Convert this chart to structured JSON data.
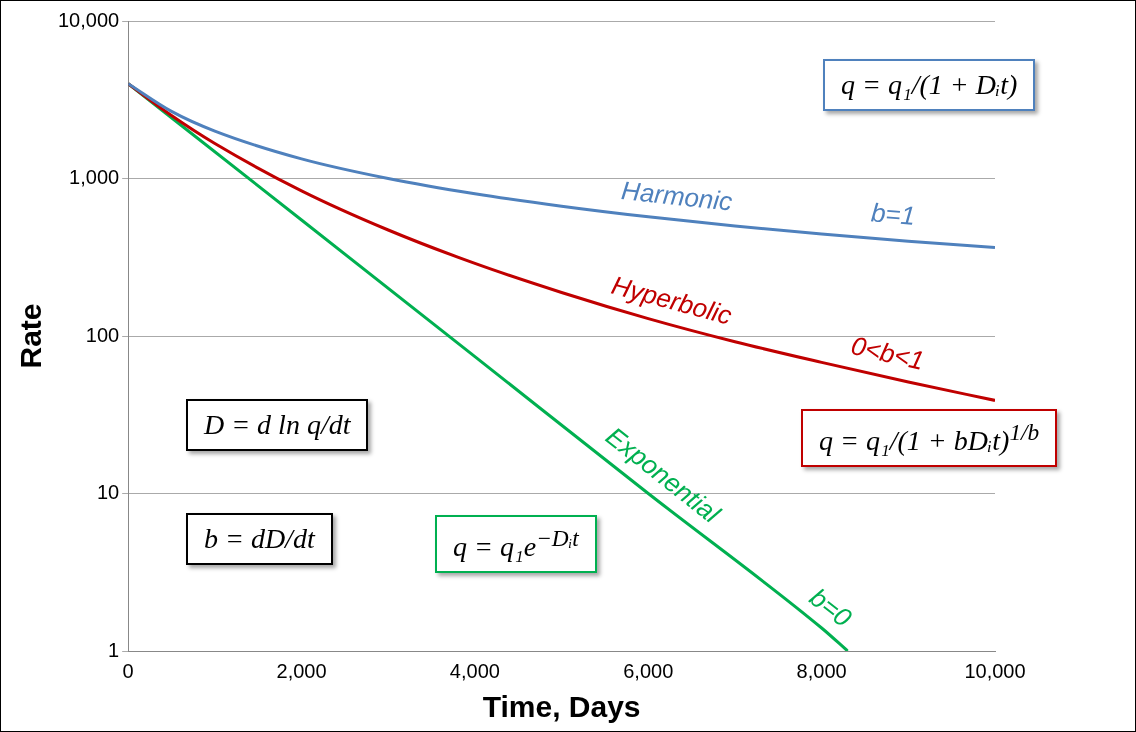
{
  "chart_data": {
    "type": "line",
    "xlabel": "Time, Days",
    "ylabel": "Rate",
    "log": "y",
    "grid": "y",
    "legend": false,
    "marker": "none",
    "line_style": "solid",
    "xlim": [
      0,
      10000
    ],
    "xticks": [
      0,
      {
        "value": 2000,
        "label": "2,000"
      },
      {
        "value": 4000,
        "label": "4,000"
      },
      {
        "value": 6000,
        "label": "6,000"
      },
      {
        "value": 8000,
        "label": "8,000"
      },
      {
        "value": 10000,
        "label": "10,000"
      }
    ],
    "ylim": [
      1,
      10000
    ],
    "yticks": [
      1,
      10,
      100,
      {
        "value": 1000,
        "label": "1,000"
      },
      {
        "value": 10000,
        "label": "10,000"
      }
    ],
    "series": [
      {
        "name": "Harmonic",
        "color": "#4f81bd",
        "x": [
          0,
          500,
          1000,
          2000,
          3000,
          4000,
          5000,
          6000,
          7000,
          8000,
          9000,
          10000
        ],
        "values": [
          4000,
          2667,
          2000,
          1333,
          1000,
          800,
          667,
          571,
          500,
          444,
          400,
          364
        ]
      },
      {
        "name": "Hyperbolic",
        "color": "#c00000",
        "x": [
          0,
          500,
          1000,
          2000,
          3000,
          4000,
          5000,
          6000,
          7000,
          8000,
          9000,
          10000
        ],
        "values": [
          4000,
          2511,
          1668,
          835,
          471,
          289,
          189,
          129,
          92,
          68,
          51,
          39
        ]
      },
      {
        "name": "Exponential",
        "color": "#00b050",
        "x": [
          0,
          2000,
          4000,
          6000,
          8000,
          8300
        ],
        "values": [
          4000,
          545,
          74,
          10,
          1.4,
          1
        ]
      }
    ],
    "annotations": [
      "b=1",
      "0<b<1",
      "b=0",
      "q = q₁/(1 + Dᵢt)",
      "q = q₁/(1 + bDᵢt)$^{1/b}$",
      "q = q₁e$^{−Dᵢt}$",
      "D = d ln q/dt",
      "b = dD/dt"
    ]
  }
}
